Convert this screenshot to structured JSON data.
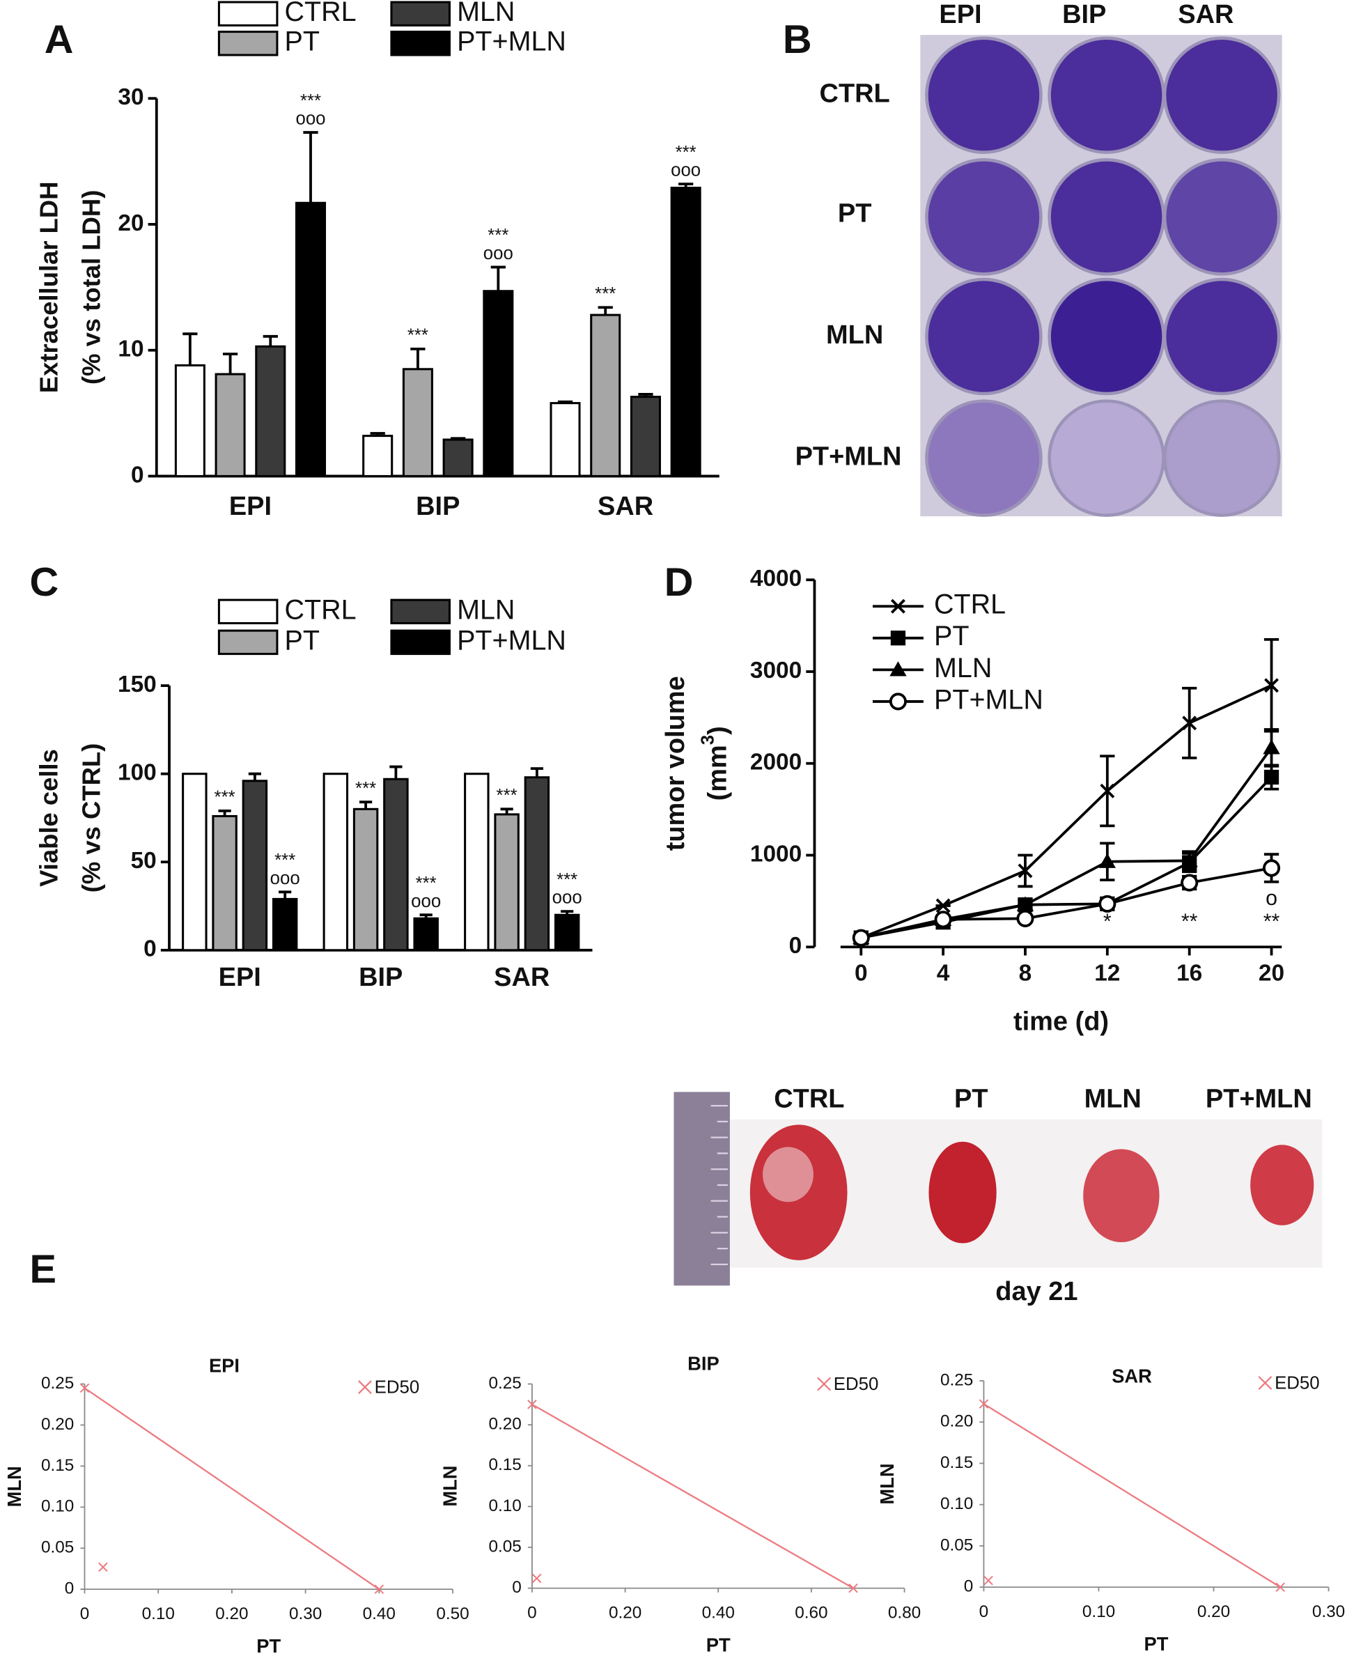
{
  "panel_labels": [
    "A",
    "B",
    "C",
    "D",
    "E"
  ],
  "plate": {
    "columns": [
      "EPI",
      "BIP",
      "SAR"
    ],
    "rows": [
      "CTRL",
      "PT",
      "MLN",
      "PT+MLN"
    ]
  },
  "tumors": {
    "labels": [
      "CTRL",
      "PT",
      "MLN",
      "PT+MLN"
    ],
    "caption": "day 21"
  },
  "chart_data": [
    {
      "type": "bar",
      "categories": [
        "EPI",
        "BIP",
        "SAR"
      ],
      "ylabel": [
        "Extracellular LDH",
        "(% vs total LDH)"
      ],
      "ylim": [
        0,
        30
      ],
      "yticks": [
        0,
        10,
        20,
        30
      ],
      "series": [
        {
          "name": "CTRL",
          "color": "#ffffff",
          "values": [
            8.8,
            3.2,
            5.8
          ],
          "errors": [
            2.5,
            0.2,
            0.1
          ]
        },
        {
          "name": "PT",
          "color": "#a6a6a6",
          "values": [
            8.1,
            8.5,
            12.8
          ],
          "errors": [
            1.6,
            1.6,
            0.6
          ],
          "annotations": [
            null,
            [
              "***"
            ],
            [
              "***"
            ]
          ]
        },
        {
          "name": "MLN",
          "color": "#3a3a3a",
          "values": [
            10.3,
            2.9,
            6.3
          ],
          "errors": [
            0.8,
            0.1,
            0.2
          ]
        },
        {
          "name": "PT+MLN",
          "color": "#000000",
          "values": [
            21.7,
            14.7,
            22.9
          ],
          "errors": [
            5.6,
            1.9,
            0.3
          ],
          "annotations": [
            [
              "***",
              "ooo"
            ],
            [
              "***",
              "ooo"
            ],
            [
              "***",
              "ooo"
            ]
          ]
        }
      ]
    },
    {
      "type": "bar",
      "categories": [
        "EPI",
        "BIP",
        "SAR"
      ],
      "ylabel": [
        "Viable cells",
        "(% vs CTRL)"
      ],
      "ylim": [
        0,
        150
      ],
      "yticks": [
        0,
        50,
        100,
        150
      ],
      "series": [
        {
          "name": "CTRL",
          "color": "#ffffff",
          "values": [
            100,
            100,
            100
          ],
          "errors": [
            null,
            null,
            null
          ]
        },
        {
          "name": "PT",
          "color": "#a6a6a6",
          "values": [
            76,
            80,
            77
          ],
          "errors": [
            3,
            4,
            3
          ],
          "annotations": [
            [
              "***"
            ],
            [
              "***"
            ],
            [
              "***"
            ]
          ]
        },
        {
          "name": "MLN",
          "color": "#3a3a3a",
          "values": [
            96,
            97,
            98
          ],
          "errors": [
            4,
            7,
            5
          ]
        },
        {
          "name": "PT+MLN",
          "color": "#000000",
          "values": [
            29,
            18,
            20
          ],
          "errors": [
            4,
            2,
            2
          ],
          "annotations": [
            [
              "***",
              "ooo"
            ],
            [
              "***",
              "ooo"
            ],
            [
              "***",
              "ooo"
            ]
          ]
        }
      ]
    },
    {
      "type": "line",
      "x": [
        0,
        4,
        8,
        12,
        16,
        20
      ],
      "xlim": [
        -1,
        20.5
      ],
      "xticks": [
        0,
        4,
        8,
        12,
        16,
        20
      ],
      "ylim": [
        0,
        4000
      ],
      "yticks": [
        0,
        1000,
        2000,
        3000,
        4000
      ],
      "xlabel": "time (d)",
      "ylabel": "tumor volume",
      "yunit": [
        "(mm",
        "3",
        ")"
      ],
      "annotations": [
        null,
        null,
        null,
        [
          "*"
        ],
        [
          "**"
        ],
        [
          "o",
          "**"
        ]
      ],
      "series": [
        {
          "name": "CTRL",
          "color": "#000000",
          "marker": "cross",
          "values": [
            100,
            450,
            830,
            1700,
            2440,
            2850
          ],
          "errors": [
            0,
            0,
            170,
            380,
            380,
            500
          ]
        },
        {
          "name": "PT",
          "color": "#000000",
          "marker": "square",
          "values": [
            100,
            270,
            460,
            470,
            920,
            1850
          ],
          "errors": [
            0,
            0,
            50,
            0,
            100,
            130
          ]
        },
        {
          "name": "MLN",
          "color": "#000000",
          "marker": "triangle",
          "values": [
            100,
            300,
            460,
            930,
            940,
            2170
          ],
          "errors": [
            0,
            0,
            0,
            200,
            100,
            200
          ]
        },
        {
          "name": "PT+MLN",
          "color": "#000000",
          "marker": "circle",
          "values": [
            100,
            300,
            310,
            470,
            700,
            860
          ],
          "errors": [
            0,
            0,
            0,
            0,
            70,
            150
          ]
        }
      ]
    },
    {
      "type": "scatter",
      "title": "EPI",
      "xlabel": "PT",
      "ylabel": "MLN",
      "xlim": [
        0,
        0.5
      ],
      "xticks": [
        0,
        {
          "value": 0.1,
          "label": "0.10"
        },
        {
          "value": 0.2,
          "label": "0.20"
        },
        {
          "value": 0.3,
          "label": "0.30"
        },
        {
          "value": 0.4,
          "label": "0.40"
        },
        {
          "value": 0.5,
          "label": "0.50"
        }
      ],
      "ylim": [
        0,
        0.25
      ],
      "yticks": [
        0,
        0.05,
        {
          "value": 0.1,
          "label": "0.10"
        },
        0.15,
        {
          "value": 0.2,
          "label": "0.20"
        },
        0.25
      ],
      "series": [
        {
          "name": "ED50",
          "color": "#ec7a80",
          "x": [
            0,
            0.4,
            0.025
          ],
          "values": [
            0.245,
            0,
            0.027
          ]
        }
      ]
    },
    {
      "type": "scatter",
      "title": "BIP",
      "xlabel": "PT",
      "ylabel": "MLN",
      "xlim": [
        0,
        0.8
      ],
      "xticks": [
        0,
        {
          "value": 0.2,
          "label": "0.20"
        },
        {
          "value": 0.4,
          "label": "0.40"
        },
        {
          "value": 0.6,
          "label": "0.60"
        },
        {
          "value": 0.8,
          "label": "0.80"
        }
      ],
      "ylim": [
        0,
        0.25
      ],
      "yticks": [
        0,
        0.05,
        {
          "value": 0.1,
          "label": "0.10"
        },
        0.15,
        {
          "value": 0.2,
          "label": "0.20"
        },
        0.25
      ],
      "series": [
        {
          "name": "ED50",
          "color": "#ec7a80",
          "x": [
            0,
            0.69,
            0.01
          ],
          "values": [
            0.225,
            0,
            0.012
          ]
        }
      ]
    },
    {
      "type": "scatter",
      "title": "SAR",
      "xlabel": "PT",
      "ylabel": "MLN",
      "xlim": [
        0,
        0.3
      ],
      "xticks": [
        0,
        {
          "value": 0.1,
          "label": "0.10"
        },
        {
          "value": 0.2,
          "label": "0.20"
        },
        {
          "value": 0.3,
          "label": "0.30"
        }
      ],
      "ylim": [
        0,
        0.25
      ],
      "yticks": [
        0,
        0.05,
        {
          "value": 0.1,
          "label": "0.10"
        },
        0.15,
        {
          "value": 0.2,
          "label": "0.20"
        },
        0.25
      ],
      "series": [
        {
          "name": "ED50",
          "color": "#ec7a80",
          "x": [
            0,
            0.258,
            0.004
          ],
          "values": [
            0.222,
            0,
            0.008
          ]
        }
      ]
    }
  ]
}
